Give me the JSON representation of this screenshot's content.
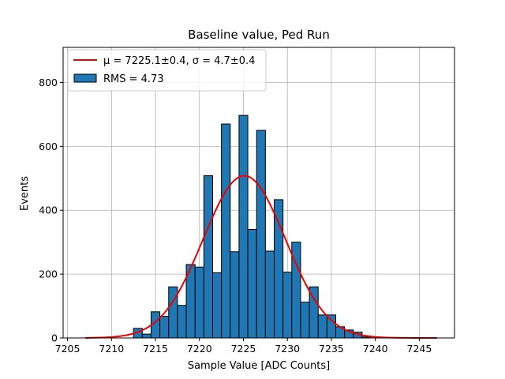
{
  "chart_data": {
    "type": "bar",
    "title": "Baseline value, Ped Run",
    "xlabel": "Sample Value [ADC Counts]",
    "ylabel": "Events",
    "xlim": [
      7204.5,
      7249
    ],
    "ylim": [
      0,
      910
    ],
    "xticks": [
      7205,
      7210,
      7215,
      7220,
      7225,
      7230,
      7235,
      7240,
      7245
    ],
    "yticks": [
      0,
      200,
      400,
      600,
      800
    ],
    "grid": true,
    "legend_placement": "top-left",
    "bin_width": 1.0,
    "bins": [
      {
        "x": 7213,
        "count": 30
      },
      {
        "x": 7214,
        "count": 12
      },
      {
        "x": 7215,
        "count": 82
      },
      {
        "x": 7216,
        "count": 68
      },
      {
        "x": 7217,
        "count": 160
      },
      {
        "x": 7218,
        "count": 102
      },
      {
        "x": 7219,
        "count": 230
      },
      {
        "x": 7220,
        "count": 222
      },
      {
        "x": 7221,
        "count": 508
      },
      {
        "x": 7222,
        "count": 204
      },
      {
        "x": 7223,
        "count": 670
      },
      {
        "x": 7224,
        "count": 270
      },
      {
        "x": 7225,
        "count": 697
      },
      {
        "x": 7226,
        "count": 340
      },
      {
        "x": 7227,
        "count": 650
      },
      {
        "x": 7228,
        "count": 272
      },
      {
        "x": 7229,
        "count": 433
      },
      {
        "x": 7230,
        "count": 206
      },
      {
        "x": 7231,
        "count": 300
      },
      {
        "x": 7232,
        "count": 112
      },
      {
        "x": 7233,
        "count": 160
      },
      {
        "x": 7234,
        "count": 72
      },
      {
        "x": 7235,
        "count": 72
      },
      {
        "x": 7236,
        "count": 35
      },
      {
        "x": 7237,
        "count": 25
      },
      {
        "x": 7238,
        "count": 18
      },
      {
        "x": 7239,
        "count": 3
      }
    ],
    "fit": {
      "mu": 7225.1,
      "sigma": 4.7,
      "amplitude": 508,
      "x_range": [
        7207,
        7247
      ]
    },
    "legend": [
      {
        "label": "μ = 7225.1±0.4, σ = 4.7±0.4",
        "kind": "line",
        "color": "#ee0000"
      },
      {
        "label": "RMS = 4.73",
        "kind": "patch",
        "color": "#1f77b4"
      }
    ],
    "colors": {
      "bar_fill": "#1f77b4",
      "bar_edge": "#000000",
      "fit_line": "#ee0000",
      "grid": "#b0b0b0"
    }
  }
}
